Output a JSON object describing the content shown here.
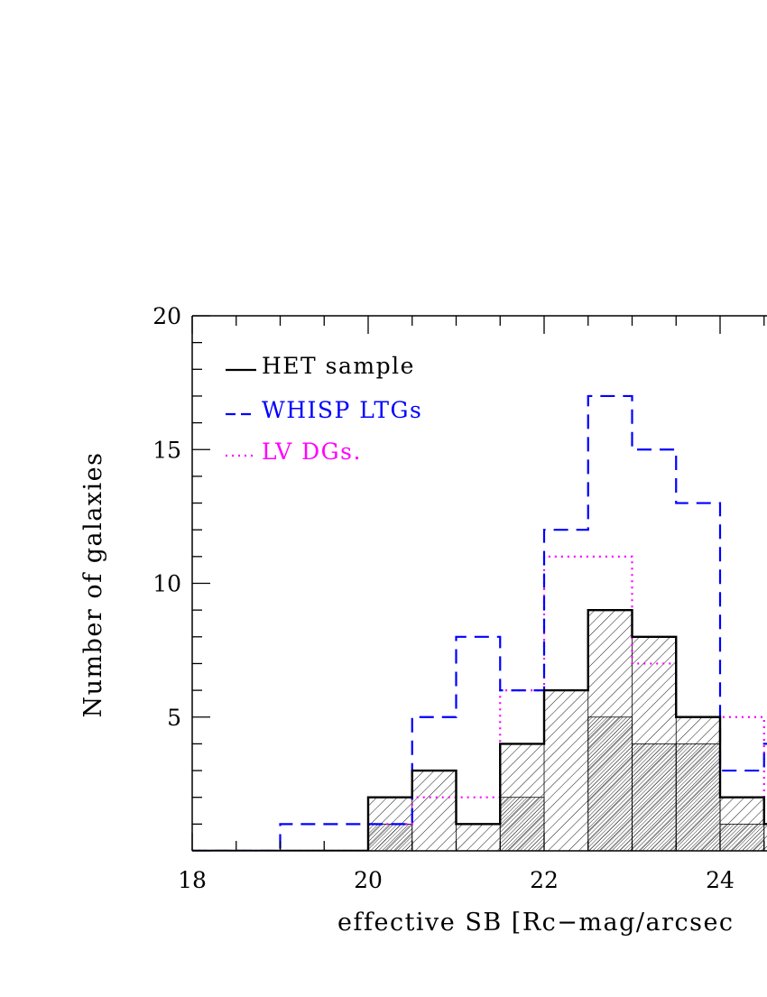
{
  "chart_data": {
    "type": "histogram",
    "xlabel": "effective SB [Rc−mag/arcsec",
    "ylabel": "Number of galaxies",
    "xlim": [
      18,
      24.85
    ],
    "ylim": [
      0,
      20
    ],
    "x_ticks": [
      18,
      20,
      22,
      24
    ],
    "y_ticks": [
      5,
      10,
      15,
      20
    ],
    "bin_edges": [
      18.0,
      18.5,
      19.0,
      19.5,
      20.0,
      20.5,
      21.0,
      21.5,
      22.0,
      22.5,
      23.0,
      23.5,
      24.0,
      24.5,
      25.0
    ],
    "legend_position": "top-left",
    "series": [
      {
        "name": "HET sample",
        "style": "solid",
        "color": "#000000",
        "values": [
          0,
          0,
          0,
          0,
          2,
          3,
          1,
          4,
          6,
          9,
          8,
          5,
          2,
          1
        ]
      },
      {
        "name": "WHISP LTGs",
        "style": "dashed",
        "color": "#0000ff",
        "values": [
          0,
          0,
          1,
          1,
          1,
          5,
          8,
          6,
          12,
          17,
          15,
          13,
          3,
          4
        ]
      },
      {
        "name": "LV DGs.",
        "style": "dotted",
        "color": "#ff00ff",
        "values": [
          0,
          0,
          0,
          0,
          1,
          2,
          2,
          6,
          11,
          11,
          7,
          5,
          5,
          2
        ]
      }
    ],
    "dense_hatched_subset": {
      "values": [
        0,
        0,
        0,
        0,
        1,
        0,
        0,
        2,
        0,
        5,
        4,
        4,
        1,
        0
      ]
    }
  }
}
